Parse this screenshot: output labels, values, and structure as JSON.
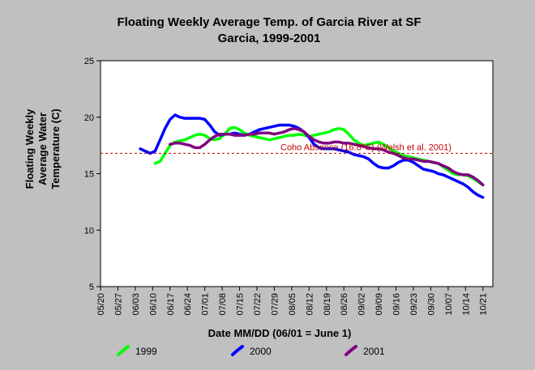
{
  "chart_data": {
    "type": "line",
    "title_lines": [
      "Floating Weekly Average Temp. of Garcia River at SF",
      "Garcia, 1999-2001"
    ],
    "xlabel": "Date MM/DD (06/01 = June 1)",
    "ylabel_lines": [
      "Floating Weekly",
      "Average Water",
      "Temperature (C)"
    ],
    "x_tick_labels": [
      "05/20",
      "05/27",
      "06/03",
      "06/10",
      "06/17",
      "06/24",
      "07/01",
      "07/08",
      "07/15",
      "07/22",
      "07/29",
      "08/05",
      "08/12",
      "08/19",
      "08/26",
      "09/02",
      "09/09",
      "09/16",
      "09/23",
      "09/30",
      "10/07",
      "10/14",
      "10/21"
    ],
    "x_tick_days": [
      -12,
      -5,
      2,
      9,
      16,
      23,
      30,
      37,
      44,
      51,
      58,
      65,
      72,
      79,
      86,
      93,
      100,
      107,
      114,
      121,
      128,
      135,
      142
    ],
    "xlim": [
      -12,
      146
    ],
    "ylim": [
      5,
      25
    ],
    "y_ticks": [
      5,
      10,
      15,
      20,
      25
    ],
    "grid": false,
    "legend_position": "bottom",
    "reference_line": {
      "y": 16.8,
      "label": "Coho Absence (16.8°C) (Welsh et al. 2001)",
      "color": "#c00000"
    },
    "series": [
      {
        "name": "1999",
        "color": "#00ff00",
        "x": [
          10,
          12,
          14,
          16,
          18,
          20,
          22,
          24,
          26,
          28,
          30,
          32,
          34,
          36,
          38,
          40,
          42,
          44,
          46,
          48,
          50,
          52,
          54,
          56,
          58,
          60,
          62,
          64,
          66,
          68,
          70,
          72,
          74,
          76,
          78,
          80,
          82,
          84,
          86,
          88,
          90,
          92,
          94,
          96,
          98,
          100,
          102,
          104,
          106,
          108,
          110,
          112,
          114,
          116,
          118,
          120,
          122,
          124,
          126,
          128,
          130,
          132,
          134,
          136,
          138,
          140,
          142
        ],
        "y": [
          15.9,
          16.1,
          16.8,
          17.5,
          17.8,
          17.9,
          18.0,
          18.2,
          18.4,
          18.5,
          18.4,
          18.1,
          18.0,
          18.1,
          18.5,
          19.0,
          19.1,
          18.9,
          18.6,
          18.4,
          18.3,
          18.2,
          18.1,
          18.0,
          18.1,
          18.2,
          18.3,
          18.4,
          18.4,
          18.5,
          18.4,
          18.3,
          18.4,
          18.5,
          18.6,
          18.7,
          18.9,
          19.0,
          18.9,
          18.5,
          18.0,
          17.7,
          17.5,
          17.6,
          17.7,
          17.8,
          17.6,
          17.3,
          17.0,
          16.8,
          16.6,
          16.5,
          16.4,
          16.3,
          16.2,
          16.1,
          16.0,
          15.9,
          15.6,
          15.3,
          15.0,
          14.9,
          14.9,
          14.8,
          14.6,
          14.3,
          14.0
        ]
      },
      {
        "name": "2000",
        "color": "#0000ff",
        "x": [
          4,
          6,
          8,
          10,
          12,
          14,
          16,
          18,
          20,
          22,
          24,
          26,
          28,
          30,
          32,
          34,
          36,
          38,
          40,
          42,
          44,
          46,
          48,
          50,
          52,
          54,
          56,
          58,
          60,
          62,
          64,
          66,
          68,
          70,
          72,
          74,
          76,
          78,
          80,
          82,
          84,
          86,
          88,
          90,
          92,
          94,
          96,
          98,
          100,
          102,
          104,
          106,
          108,
          110,
          112,
          114,
          116,
          118,
          120,
          122,
          124,
          126,
          128,
          130,
          132,
          134,
          136,
          138,
          140,
          142
        ],
        "y": [
          17.2,
          17.0,
          16.8,
          17.0,
          18.0,
          19.0,
          19.8,
          20.2,
          20.0,
          19.9,
          19.9,
          19.9,
          19.9,
          19.8,
          19.3,
          18.7,
          18.4,
          18.5,
          18.5,
          18.6,
          18.5,
          18.4,
          18.5,
          18.7,
          18.9,
          19.0,
          19.1,
          19.2,
          19.3,
          19.3,
          19.3,
          19.2,
          19.0,
          18.7,
          18.2,
          17.6,
          17.3,
          17.2,
          17.2,
          17.2,
          17.1,
          17.0,
          16.9,
          16.7,
          16.6,
          16.5,
          16.3,
          15.9,
          15.6,
          15.5,
          15.5,
          15.7,
          16.0,
          16.2,
          16.2,
          16.0,
          15.7,
          15.4,
          15.3,
          15.2,
          15.0,
          14.9,
          14.7,
          14.5,
          14.3,
          14.1,
          13.8,
          13.4,
          13.1,
          12.9
        ]
      },
      {
        "name": "2001",
        "color": "#800080",
        "x": [
          16,
          18,
          20,
          22,
          24,
          26,
          28,
          30,
          32,
          34,
          36,
          38,
          40,
          42,
          44,
          46,
          48,
          50,
          52,
          54,
          56,
          58,
          60,
          62,
          64,
          66,
          68,
          70,
          72,
          74,
          76,
          78,
          80,
          82,
          84,
          86,
          88,
          90,
          92,
          94,
          96,
          98,
          100,
          102,
          104,
          106,
          108,
          110,
          112,
          114,
          116,
          118,
          120,
          122,
          124,
          126,
          128,
          130,
          132,
          134,
          136,
          138,
          140,
          142
        ],
        "y": [
          17.6,
          17.7,
          17.7,
          17.6,
          17.5,
          17.3,
          17.3,
          17.6,
          18.0,
          18.3,
          18.5,
          18.5,
          18.5,
          18.4,
          18.4,
          18.4,
          18.5,
          18.5,
          18.6,
          18.6,
          18.6,
          18.5,
          18.6,
          18.7,
          18.9,
          19.0,
          18.9,
          18.7,
          18.3,
          18.0,
          17.8,
          17.7,
          17.7,
          17.8,
          17.8,
          17.7,
          17.7,
          17.6,
          17.5,
          17.4,
          17.3,
          17.2,
          17.2,
          17.1,
          16.9,
          16.8,
          16.6,
          16.4,
          16.3,
          16.3,
          16.2,
          16.1,
          16.1,
          16.0,
          15.9,
          15.7,
          15.5,
          15.2,
          15.0,
          14.9,
          14.9,
          14.7,
          14.4,
          14.0
        ]
      }
    ]
  }
}
